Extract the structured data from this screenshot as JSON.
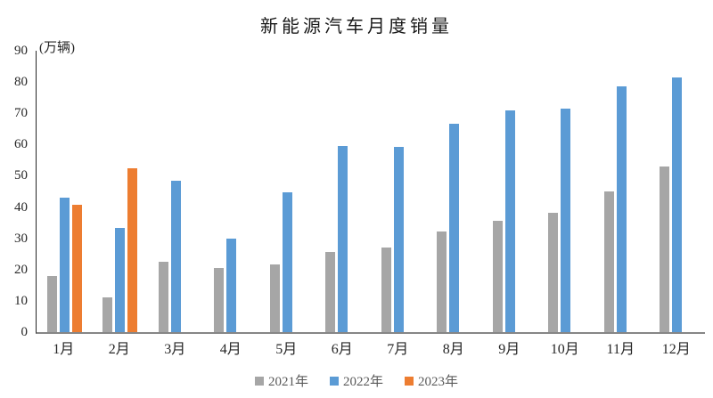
{
  "chart_data": {
    "type": "bar",
    "title": "新能源汽车月度销量",
    "unit_label": "(万辆)",
    "categories": [
      "1月",
      "2月",
      "3月",
      "4月",
      "5月",
      "6月",
      "7月",
      "8月",
      "9月",
      "10月",
      "11月",
      "12月"
    ],
    "series": [
      {
        "name": "2021年",
        "color": "#A6A6A6",
        "values": [
          17.9,
          11.0,
          22.6,
          20.6,
          21.7,
          25.6,
          27.1,
          32.1,
          35.7,
          38.3,
          45.0,
          53.1
        ]
      },
      {
        "name": "2022年",
        "color": "#5B9BD5",
        "values": [
          43.1,
          33.4,
          48.4,
          29.9,
          44.7,
          59.6,
          59.3,
          66.6,
          70.8,
          71.4,
          78.6,
          81.4
        ]
      },
      {
        "name": "2023年",
        "color": "#ED7D31",
        "values": [
          40.8,
          52.5,
          null,
          null,
          null,
          null,
          null,
          null,
          null,
          null,
          null,
          null
        ]
      }
    ],
    "ylim": [
      0,
      90
    ],
    "yticks": [
      0,
      10,
      20,
      30,
      40,
      50,
      60,
      70,
      80,
      90
    ],
    "grid": false,
    "legend_position": "bottom",
    "axis_colors": {
      "y_axis_line": "#262626",
      "x_axis_line": "#868686"
    }
  }
}
